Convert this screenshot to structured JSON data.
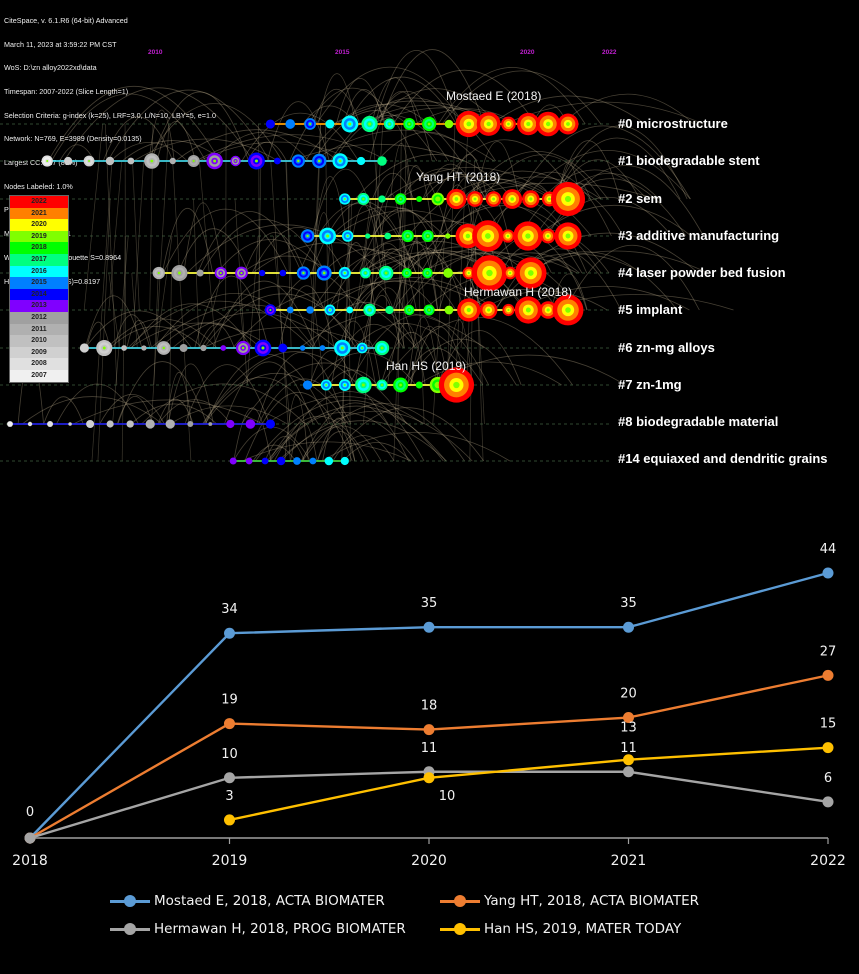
{
  "info_header": {
    "lines": [
      "CiteSpace, v. 6.1.R6 (64-bit) Advanced",
      "March 11, 2023 at 3:59:22 PM CST",
      "WoS: D:\\zn alloy2022xd\\data",
      "Timespan: 2007-2022 (Slice Length=1)",
      "Selection Criteria: g-index (k=25), LRF=3.0, L/N=10, LBY=5, e=1.0",
      "Network: N=769, E=3989 (Density=0.0135)",
      "Largest CC: 627 (81%)",
      "Nodes Labeled: 1.0%",
      "Pruning: None",
      "Modularity Q=0.7551",
      "Weighted Mean Silhouette S=0.8964",
      "Harmonic Mean(Q, S)=0.8197"
    ]
  },
  "timeline_years": [
    "2010",
    "2015",
    "2020",
    "2022"
  ],
  "year_color_legend": [
    {
      "year": "2022",
      "color": "#ff0000"
    },
    {
      "year": "2021",
      "color": "#ff8000"
    },
    {
      "year": "2020",
      "color": "#ffff00"
    },
    {
      "year": "2019",
      "color": "#80ff00"
    },
    {
      "year": "2018",
      "color": "#00ff00"
    },
    {
      "year": "2017",
      "color": "#00ff80"
    },
    {
      "year": "2016",
      "color": "#00ffff"
    },
    {
      "year": "2015",
      "color": "#0080ff"
    },
    {
      "year": "2014",
      "color": "#0000ff"
    },
    {
      "year": "2013",
      "color": "#8000ff"
    },
    {
      "year": "2012",
      "color": "#a0a0a0"
    },
    {
      "year": "2011",
      "color": "#b0b0b0"
    },
    {
      "year": "2010",
      "color": "#c0c0c0"
    },
    {
      "year": "2009",
      "color": "#d0d0d0"
    },
    {
      "year": "2008",
      "color": "#e0e0e0"
    },
    {
      "year": "2007",
      "color": "#f0f0f0"
    }
  ],
  "clusters": [
    {
      "id": "#0",
      "label": "#0 microstructure",
      "start_year": 2014,
      "end_year": 2022
    },
    {
      "id": "#1",
      "label": "#1 biodegradable stent",
      "start_year": 2008,
      "end_year": 2017
    },
    {
      "id": "#2",
      "label": "#2 sem",
      "start_year": 2016,
      "end_year": 2022
    },
    {
      "id": "#3",
      "label": "#3 additive manufacturing",
      "start_year": 2015,
      "end_year": 2022
    },
    {
      "id": "#4",
      "label": "#4 laser powder bed fusion",
      "start_year": 2011,
      "end_year": 2021
    },
    {
      "id": "#5",
      "label": "#5 implant",
      "start_year": 2014,
      "end_year": 2022
    },
    {
      "id": "#6",
      "label": "#6 zn-mg alloys",
      "start_year": 2009,
      "end_year": 2017
    },
    {
      "id": "#7",
      "label": "#7 zn-1mg",
      "start_year": 2015,
      "end_year": 2019
    },
    {
      "id": "#8",
      "label": "#8 biodegradable material",
      "start_year": 2007,
      "end_year": 2014
    },
    {
      "id": "#14",
      "label": "#14 equiaxed and dendritic grains",
      "start_year": 2013,
      "end_year": 2016
    }
  ],
  "node_labels": [
    {
      "text": "Mostaed E (2018)",
      "cluster": "#0"
    },
    {
      "text": "Yang HT (2018)",
      "cluster": "#2"
    },
    {
      "text": "Hermawan H (2018)",
      "cluster": "#5"
    },
    {
      "text": "Han HS (2019)",
      "cluster": "#7"
    }
  ],
  "chart_data": {
    "type": "line",
    "title": "",
    "xlabel": "",
    "ylabel": "",
    "categories": [
      "2018",
      "2019",
      "2020",
      "2021",
      "2022"
    ],
    "ylim": [
      0,
      44
    ],
    "grid": false,
    "legend_position": "bottom",
    "series": [
      {
        "name": "Mostaed E, 2018, ACTA BIOMATER",
        "color": "#5b9bd5",
        "values": [
          0,
          34,
          35,
          35,
          44
        ]
      },
      {
        "name": "Yang HT, 2018, ACTA BIOMATER",
        "color": "#ed7d31",
        "values": [
          0,
          19,
          18,
          20,
          27
        ]
      },
      {
        "name": "Hermawan H, 2018, PROG BIOMATER",
        "color": "#a5a5a5",
        "values": [
          0,
          10,
          11,
          11,
          6
        ]
      },
      {
        "name": "Han HS, 2019, MATER TODAY",
        "color": "#ffc000",
        "values": [
          null,
          3,
          10,
          13,
          15
        ]
      }
    ]
  }
}
